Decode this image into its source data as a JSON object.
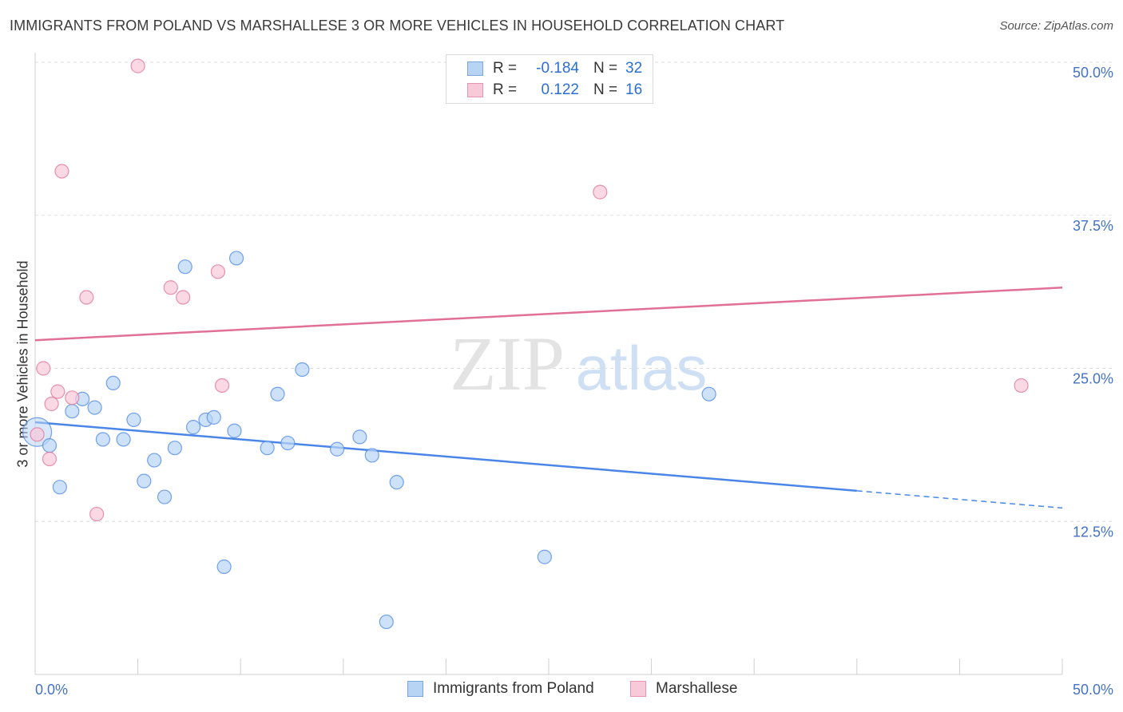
{
  "title": "IMMIGRANTS FROM POLAND VS MARSHALLESE 3 OR MORE VEHICLES IN HOUSEHOLD CORRELATION CHART",
  "source": "Source: ZipAtlas.com",
  "watermark": {
    "zip": "ZIP",
    "atlas": "atlas"
  },
  "legend": {
    "rows": [
      {
        "r_label": "R =",
        "r_value": "-0.184",
        "n_label": "N =",
        "n_value": "32",
        "color": "#b8d4f5"
      },
      {
        "r_label": "R =",
        "r_value": "0.122",
        "n_label": "N =",
        "n_value": "16",
        "color": "#f8c9d8"
      }
    ]
  },
  "bottom_legend": [
    {
      "label": "Immigrants from Poland",
      "color": "#b8d4f5"
    },
    {
      "label": "Marshallese",
      "color": "#f8c9d8"
    }
  ],
  "chart_data": {
    "type": "scatter",
    "title": "IMMIGRANTS FROM POLAND VS MARSHALLESE 3 OR MORE VEHICLES IN HOUSEHOLD CORRELATION CHART",
    "xlabel": "",
    "ylabel": "3 or more Vehicles in Household",
    "xlim": [
      0,
      50
    ],
    "ylim": [
      0,
      50
    ],
    "x_tick_labels": {
      "left": "0.0%",
      "right": "50.0%"
    },
    "y_ticks": [
      {
        "value": 12.5,
        "label": "12.5%"
      },
      {
        "value": 25.0,
        "label": "25.0%"
      },
      {
        "value": 37.5,
        "label": "37.5%"
      },
      {
        "value": 50.0,
        "label": "50.0%"
      }
    ],
    "grid": true,
    "series": [
      {
        "name": "Immigrants from Poland",
        "color": "#4a86e8",
        "fill": "#b8d4f5",
        "r": -0.184,
        "n": 32,
        "trend": {
          "x0": 0,
          "y0": 20.6,
          "x1": 40,
          "y1": 15.0,
          "dash_to_x": 50,
          "dash_to_y": 13.6
        },
        "points": [
          {
            "x": 0.1,
            "y": 19.8,
            "big": true
          },
          {
            "x": 0.7,
            "y": 18.7
          },
          {
            "x": 1.2,
            "y": 15.3
          },
          {
            "x": 1.8,
            "y": 21.5
          },
          {
            "x": 2.3,
            "y": 22.5
          },
          {
            "x": 2.9,
            "y": 21.8
          },
          {
            "x": 3.3,
            "y": 19.2
          },
          {
            "x": 3.8,
            "y": 23.8
          },
          {
            "x": 4.3,
            "y": 19.2
          },
          {
            "x": 4.8,
            "y": 20.8
          },
          {
            "x": 5.3,
            "y": 15.8
          },
          {
            "x": 5.8,
            "y": 17.5
          },
          {
            "x": 6.3,
            "y": 14.5
          },
          {
            "x": 6.8,
            "y": 18.5
          },
          {
            "x": 7.3,
            "y": 33.3
          },
          {
            "x": 7.7,
            "y": 20.2
          },
          {
            "x": 8.3,
            "y": 20.8
          },
          {
            "x": 8.7,
            "y": 21.0
          },
          {
            "x": 9.2,
            "y": 8.8
          },
          {
            "x": 9.8,
            "y": 34.0
          },
          {
            "x": 9.7,
            "y": 19.9
          },
          {
            "x": 11.3,
            "y": 18.5
          },
          {
            "x": 11.8,
            "y": 22.9
          },
          {
            "x": 12.3,
            "y": 18.9
          },
          {
            "x": 13.0,
            "y": 24.9
          },
          {
            "x": 14.7,
            "y": 18.4
          },
          {
            "x": 15.8,
            "y": 19.4
          },
          {
            "x": 16.4,
            "y": 17.9
          },
          {
            "x": 17.1,
            "y": 4.3
          },
          {
            "x": 17.6,
            "y": 15.7
          },
          {
            "x": 24.8,
            "y": 9.6
          },
          {
            "x": 32.8,
            "y": 22.9
          }
        ]
      },
      {
        "name": "Marshallese",
        "color": "#e07095",
        "fill": "#f8c9d8",
        "r": 0.122,
        "n": 16,
        "trend": {
          "x0": 0,
          "y0": 27.3,
          "x1": 50,
          "y1": 31.6
        },
        "points": [
          {
            "x": 0.1,
            "y": 19.6
          },
          {
            "x": 0.4,
            "y": 25.0
          },
          {
            "x": 0.7,
            "y": 17.6
          },
          {
            "x": 0.8,
            "y": 22.1
          },
          {
            "x": 1.1,
            "y": 23.1
          },
          {
            "x": 1.3,
            "y": 41.1
          },
          {
            "x": 1.8,
            "y": 22.6
          },
          {
            "x": 2.5,
            "y": 30.8
          },
          {
            "x": 3.0,
            "y": 13.1
          },
          {
            "x": 5.0,
            "y": 49.7
          },
          {
            "x": 6.6,
            "y": 31.6
          },
          {
            "x": 7.2,
            "y": 30.8
          },
          {
            "x": 8.9,
            "y": 32.9
          },
          {
            "x": 9.1,
            "y": 23.6
          },
          {
            "x": 27.5,
            "y": 39.4
          },
          {
            "x": 48.0,
            "y": 23.6
          }
        ]
      }
    ]
  }
}
